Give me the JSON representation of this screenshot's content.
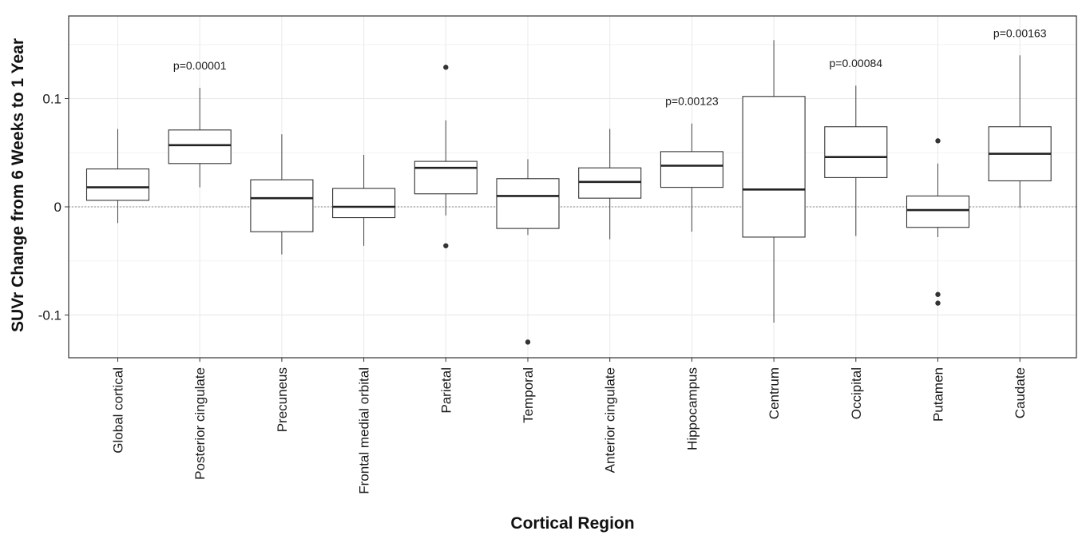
{
  "chart_data": {
    "type": "box",
    "xlabel": "Cortical Region",
    "ylabel": "SUVr Change from 6 Weeks to 1 Year",
    "ylim": [
      -0.14,
      0.175
    ],
    "yticks": [
      {
        "value": 0.1,
        "label": "0.1"
      },
      {
        "value": 0.0,
        "label": "0"
      },
      {
        "value": -0.1,
        "label": "-0.1"
      }
    ],
    "grid": true,
    "reference_line": 0,
    "categories": [
      "Global cortical",
      "Posterior cingulate",
      "Precuneus",
      "Frontal medial orbital",
      "Parietal",
      "Temporal",
      "Anterior cingulate",
      "Hippocampus",
      "Centrum",
      "Occipital",
      "Putamen",
      "Caudate"
    ],
    "boxes": [
      {
        "category": "Global cortical",
        "whisker_low": -0.015,
        "q1": 0.006,
        "median": 0.018,
        "q3": 0.035,
        "whisker_high": 0.072,
        "outliers": [],
        "annotation": ""
      },
      {
        "category": "Posterior cingulate",
        "whisker_low": 0.018,
        "q1": 0.04,
        "median": 0.057,
        "q3": 0.071,
        "whisker_high": 0.11,
        "outliers": [],
        "annotation": "p=0.00001"
      },
      {
        "category": "Precuneus",
        "whisker_low": -0.044,
        "q1": -0.023,
        "median": 0.008,
        "q3": 0.025,
        "whisker_high": 0.067,
        "outliers": [],
        "annotation": ""
      },
      {
        "category": "Frontal medial orbital",
        "whisker_low": -0.036,
        "q1": -0.01,
        "median": 0.0,
        "q3": 0.017,
        "whisker_high": 0.048,
        "outliers": [],
        "annotation": ""
      },
      {
        "category": "Parietal",
        "whisker_low": -0.008,
        "q1": 0.012,
        "median": 0.036,
        "q3": 0.042,
        "whisker_high": 0.08,
        "outliers": [
          0.129,
          -0.036
        ],
        "annotation": ""
      },
      {
        "category": "Temporal",
        "whisker_low": -0.026,
        "q1": -0.02,
        "median": 0.01,
        "q3": 0.026,
        "whisker_high": 0.044,
        "outliers": [
          -0.125
        ],
        "annotation": ""
      },
      {
        "category": "Anterior cingulate",
        "whisker_low": -0.03,
        "q1": 0.008,
        "median": 0.023,
        "q3": 0.036,
        "whisker_high": 0.072,
        "outliers": [],
        "annotation": ""
      },
      {
        "category": "Hippocampus",
        "whisker_low": -0.023,
        "q1": 0.018,
        "median": 0.038,
        "q3": 0.051,
        "whisker_high": 0.077,
        "outliers": [],
        "annotation": "p=0.00123"
      },
      {
        "category": "Centrum",
        "whisker_low": -0.107,
        "q1": -0.028,
        "median": 0.016,
        "q3": 0.102,
        "whisker_high": 0.154,
        "outliers": [],
        "annotation": ""
      },
      {
        "category": "Occipital",
        "whisker_low": -0.027,
        "q1": 0.027,
        "median": 0.046,
        "q3": 0.074,
        "whisker_high": 0.112,
        "outliers": [],
        "annotation": "p=0.00084"
      },
      {
        "category": "Putamen",
        "whisker_low": -0.028,
        "q1": -0.019,
        "median": -0.003,
        "q3": 0.01,
        "whisker_high": 0.04,
        "outliers": [
          0.061,
          -0.081,
          -0.089
        ],
        "annotation": ""
      },
      {
        "category": "Caudate",
        "whisker_low": -0.001,
        "q1": 0.024,
        "median": 0.049,
        "q3": 0.074,
        "whisker_high": 0.14,
        "outliers": [],
        "annotation": "p=0.00163"
      }
    ]
  }
}
